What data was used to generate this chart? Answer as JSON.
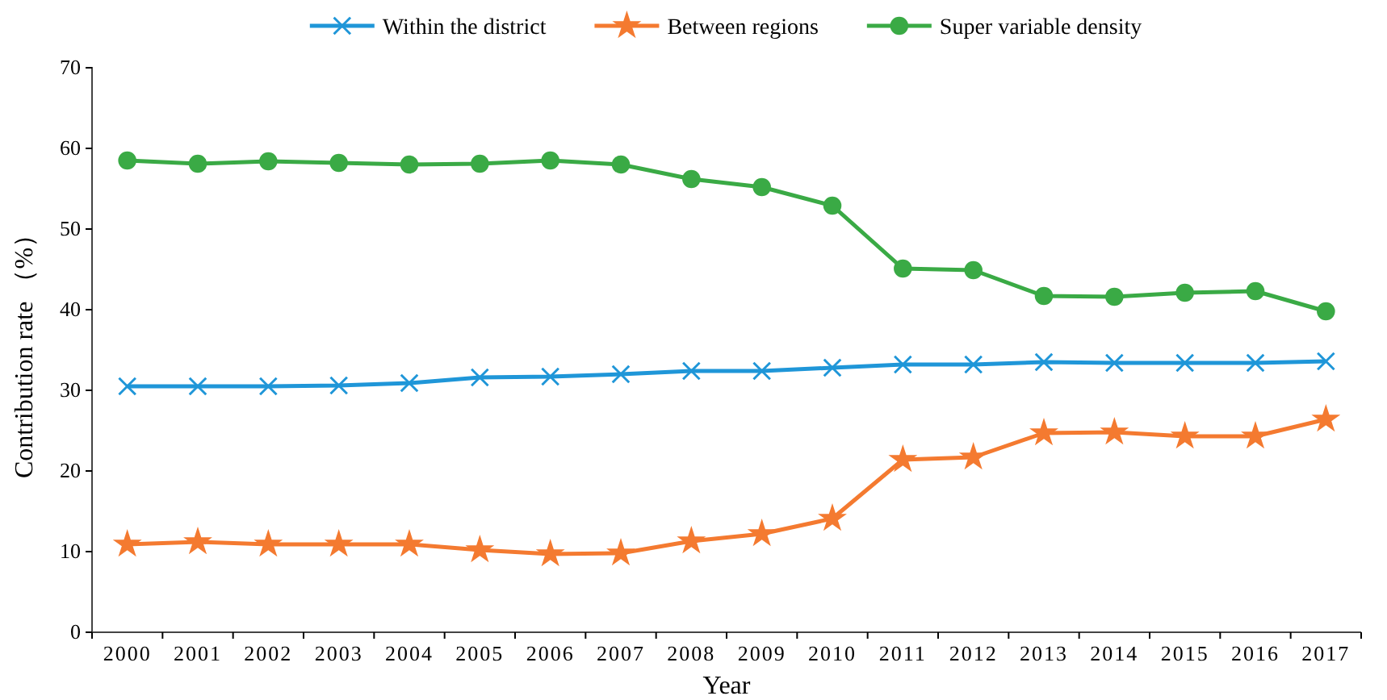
{
  "chart_data": {
    "type": "line",
    "xlabel": "Year",
    "ylabel": "Contribution rate （%）",
    "categories": [
      "2000",
      "2001",
      "2002",
      "2003",
      "2004",
      "2005",
      "2006",
      "2007",
      "2008",
      "2009",
      "2010",
      "2011",
      "2012",
      "2013",
      "2014",
      "2015",
      "2016",
      "2017"
    ],
    "series": [
      {
        "name": "Within the district",
        "color": "#1f96d8",
        "marker": "cross",
        "values": [
          30.5,
          30.5,
          30.5,
          30.6,
          30.9,
          31.6,
          31.7,
          32.0,
          32.4,
          32.4,
          32.8,
          33.2,
          33.2,
          33.5,
          33.4,
          33.4,
          33.4,
          33.6
        ]
      },
      {
        "name": "Between regions",
        "color": "#f47a30",
        "marker": "star",
        "values": [
          10.9,
          11.2,
          10.9,
          10.9,
          10.9,
          10.2,
          9.7,
          9.8,
          11.3,
          12.2,
          14.1,
          21.4,
          21.7,
          24.7,
          24.8,
          24.3,
          24.3,
          26.4
        ]
      },
      {
        "name": "Super variable density",
        "color": "#3aaa45",
        "marker": "circle",
        "values": [
          58.5,
          58.1,
          58.4,
          58.2,
          58.0,
          58.1,
          58.5,
          58.0,
          56.2,
          55.2,
          52.9,
          45.1,
          44.9,
          41.7,
          41.6,
          42.1,
          42.3,
          39.8
        ]
      }
    ],
    "ylim": [
      0,
      70
    ],
    "yticks": [
      0,
      10,
      20,
      30,
      40,
      50,
      60,
      70
    ],
    "grid": false,
    "legend": "top",
    "line_style": "solid"
  }
}
